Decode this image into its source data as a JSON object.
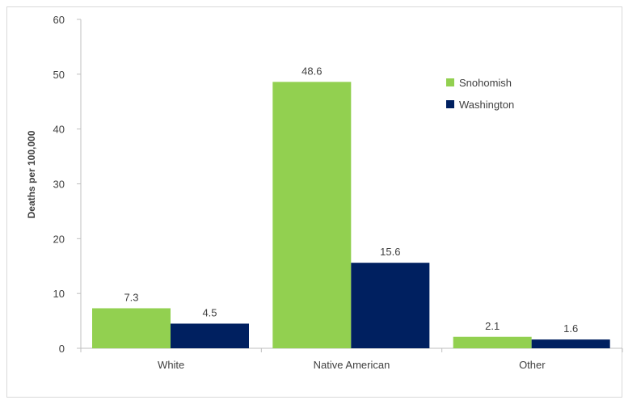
{
  "colors": {
    "snohomish": "#92d050",
    "washington": "#002060",
    "axis": "#bfbfbf",
    "text": "#404040"
  },
  "chart_data": {
    "type": "bar",
    "categories": [
      "White",
      "Native American",
      "Other"
    ],
    "series": [
      {
        "name": "Snohomish",
        "values": [
          7.3,
          48.6,
          2.1
        ],
        "labels": [
          "7.3",
          "48.6",
          "2.1"
        ]
      },
      {
        "name": "Washington",
        "values": [
          4.5,
          15.6,
          1.6
        ],
        "labels": [
          "4.5",
          "15.6",
          "1.6"
        ]
      }
    ],
    "ylabel": "Deaths per 100,000",
    "ylim": [
      0,
      60
    ],
    "yticks": [
      0,
      10,
      20,
      30,
      40,
      50,
      60
    ],
    "grid": false,
    "legend": "top-right"
  }
}
